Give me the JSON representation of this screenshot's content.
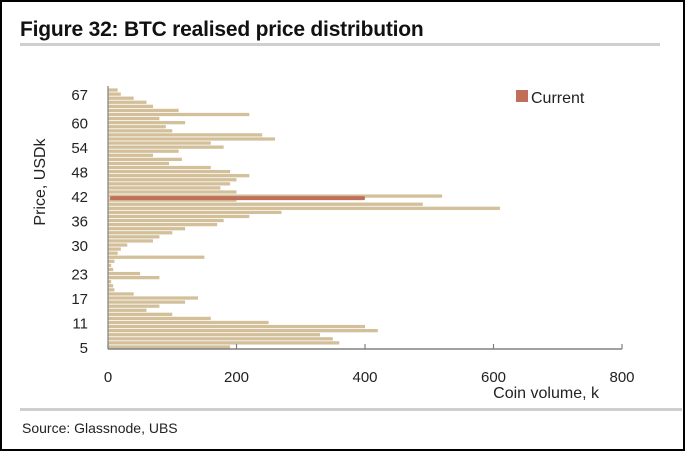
{
  "figure": {
    "title": "Figure 32: BTC realised price distribution",
    "source": "Source: Glassnode, UBS"
  },
  "colors": {
    "bars": "#d3c09a",
    "current": "#c0705a",
    "axis": "#808080",
    "text": "#222222"
  },
  "chart_data": {
    "type": "bar",
    "orientation": "horizontal",
    "title": "BTC realised price distribution",
    "xlabel": "Coin volume, k",
    "ylabel": "Price, USDk",
    "xlim": [
      0,
      800
    ],
    "ylim": [
      4.5,
      68.5
    ],
    "x_ticks": [
      0,
      200,
      400,
      600,
      800
    ],
    "y_ticks": [
      5,
      11,
      17,
      23,
      30,
      36,
      42,
      48,
      54,
      60,
      67
    ],
    "grid": false,
    "legend": {
      "position": "top-right",
      "entries": [
        "Current"
      ]
    },
    "price_bins_usdk": [
      68,
      67,
      66,
      65,
      64,
      63,
      62,
      61,
      60,
      59,
      58,
      57,
      56,
      55,
      54,
      53,
      52,
      51,
      50,
      49,
      48,
      47,
      46,
      45,
      44,
      43,
      42,
      41,
      40,
      39,
      38,
      37,
      36,
      35,
      34,
      33,
      32,
      31,
      30,
      29,
      28,
      27,
      26,
      25,
      24,
      23,
      22,
      21,
      20,
      19,
      18,
      17,
      16,
      15,
      14,
      13,
      12,
      11,
      10,
      9,
      8,
      7,
      6,
      5
    ],
    "series": [
      {
        "name": "Coin volume",
        "values": [
          15,
          20,
          40,
          60,
          70,
          110,
          220,
          80,
          120,
          90,
          100,
          240,
          260,
          160,
          180,
          110,
          70,
          115,
          95,
          160,
          190,
          220,
          200,
          190,
          175,
          200,
          520,
          200,
          490,
          610,
          270,
          220,
          180,
          170,
          120,
          100,
          80,
          70,
          30,
          20,
          15,
          150,
          10,
          5,
          8,
          50,
          80,
          5,
          8,
          10,
          40,
          140,
          120,
          80,
          60,
          100,
          160,
          250,
          400,
          420,
          330,
          350,
          360,
          190
        ],
        "color": "#d3c09a"
      },
      {
        "name": "Current",
        "price_usdk": 41.5,
        "value": 400,
        "color": "#c0705a"
      }
    ]
  }
}
